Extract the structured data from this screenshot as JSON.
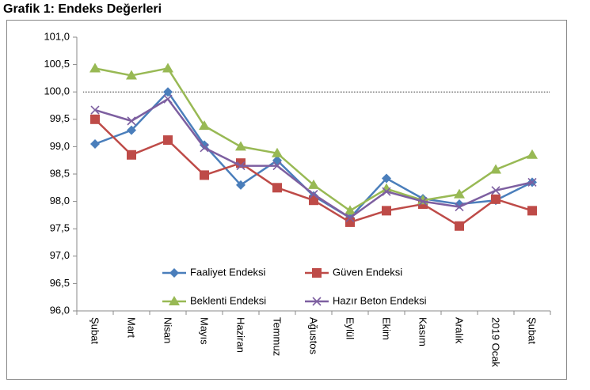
{
  "chart_data": {
    "type": "line",
    "title": "Grafik 1: Endeks Değerleri",
    "categories": [
      "Şubat",
      "Mart",
      "Nisan",
      "Mayıs",
      "Haziran",
      "Temmuz",
      "Ağustos",
      "Eylül",
      "Ekim",
      "Kasım",
      "Aralık",
      "2019 Ocak",
      "Şubat"
    ],
    "series": [
      {
        "name": "Faaliyet Endeksi",
        "color": "#4a7ebb",
        "marker": "diamond",
        "values": [
          99.05,
          99.3,
          100.0,
          99.03,
          98.3,
          98.75,
          98.1,
          97.7,
          98.42,
          98.05,
          97.95,
          98.02,
          98.35
        ]
      },
      {
        "name": "Güven Endeksi",
        "color": "#be4b48",
        "marker": "square",
        "values": [
          99.5,
          98.85,
          99.12,
          98.48,
          98.7,
          98.25,
          98.02,
          97.62,
          97.83,
          97.95,
          97.55,
          98.04,
          97.83
        ]
      },
      {
        "name": "Beklenti Endeksi",
        "color": "#98b954",
        "marker": "triangle",
        "values": [
          100.43,
          100.3,
          100.43,
          99.38,
          99.0,
          98.88,
          98.3,
          97.83,
          98.23,
          98.02,
          98.13,
          98.58,
          98.85
        ]
      },
      {
        "name": "Hazır Beton Endeksi",
        "color": "#7d5fa0",
        "marker": "x",
        "values": [
          99.67,
          99.47,
          99.87,
          98.98,
          98.65,
          98.65,
          98.13,
          97.7,
          98.18,
          98.0,
          97.9,
          98.2,
          98.35
        ]
      }
    ],
    "ylim": [
      96,
      101
    ],
    "yticks": [
      {
        "value": 96,
        "label": "96,0"
      },
      {
        "value": 96.5,
        "label": "96,5"
      },
      {
        "value": 97,
        "label": "97,0"
      },
      {
        "value": 97.5,
        "label": "97,5"
      },
      {
        "value": 98,
        "label": "98,0"
      },
      {
        "value": 98.5,
        "label": "98,5"
      },
      {
        "value": 99,
        "label": "99,0"
      },
      {
        "value": 99.5,
        "label": "99,5"
      },
      {
        "value": 100,
        "label": "100,0"
      },
      {
        "value": 100.5,
        "label": "100,5"
      },
      {
        "value": 101,
        "label": "101,0"
      }
    ],
    "reference_line": 100,
    "legend": "bottom"
  }
}
